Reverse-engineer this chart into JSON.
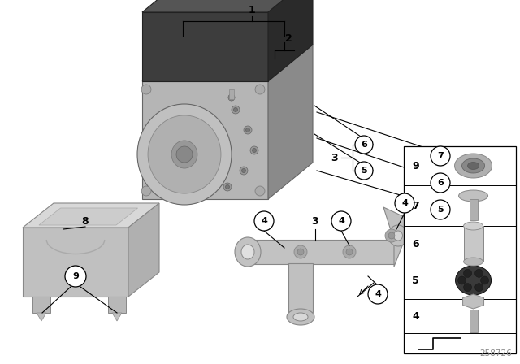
{
  "background_color": "#ffffff",
  "fig_width": 6.4,
  "fig_height": 4.48,
  "dpi": 100,
  "watermark": "258726",
  "gray_light": "#c8c8c8",
  "gray_medium": "#a8a8a8",
  "gray_dark": "#787878",
  "black": "#000000",
  "ecu_dark": "#4a4a4a",
  "ecu_darker": "#333333",
  "ecu_side": "#282828",
  "block_face": "#b0b0b0",
  "block_top": "#d0d0d0",
  "block_side": "#909090"
}
